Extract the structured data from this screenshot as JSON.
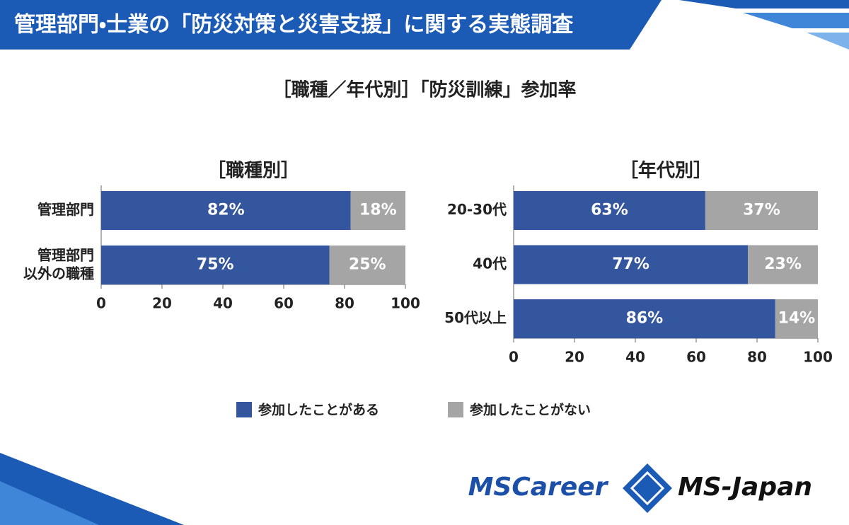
{
  "header": {
    "title": "管理部門・士業の「防災対策と災害支援」に関する実態調査"
  },
  "subtitle": "［職種／年代別］「防災訓練」参加率",
  "chart_data": [
    {
      "type": "bar",
      "orientation": "horizontal",
      "stacked": true,
      "title": "［職種別］",
      "categories": [
        "管理部門",
        "管理部門\n以外の職種"
      ],
      "series": [
        {
          "name": "参加したことがある",
          "color": "#34569f",
          "values": [
            82,
            75
          ],
          "value_labels": [
            "82%",
            "75%"
          ]
        },
        {
          "name": "参加したことがない",
          "color": "#a5a5a5",
          "values": [
            18,
            25
          ],
          "value_labels": [
            "18%",
            "25%"
          ]
        }
      ],
      "xlim": [
        0,
        100
      ],
      "xticks": [
        0,
        20,
        40,
        60,
        80,
        100
      ]
    },
    {
      "type": "bar",
      "orientation": "horizontal",
      "stacked": true,
      "title": "［年代別］",
      "categories": [
        "20-30代",
        "40代",
        "50代以上"
      ],
      "series": [
        {
          "color": "#34569f",
          "values": [
            63,
            77,
            86
          ],
          "value_labels": [
            "63%",
            "77%",
            "86%"
          ]
        },
        {
          "color": "#a5a5a5",
          "values": [
            37,
            23,
            14
          ],
          "value_labels": [
            "37%",
            "23%",
            "14%"
          ]
        }
      ],
      "xlim": [
        0,
        100
      ],
      "xticks": [
        0,
        20,
        40,
        60,
        80,
        100
      ]
    }
  ],
  "logo": {
    "left": "MSCareer",
    "right": "MS-Japan"
  }
}
